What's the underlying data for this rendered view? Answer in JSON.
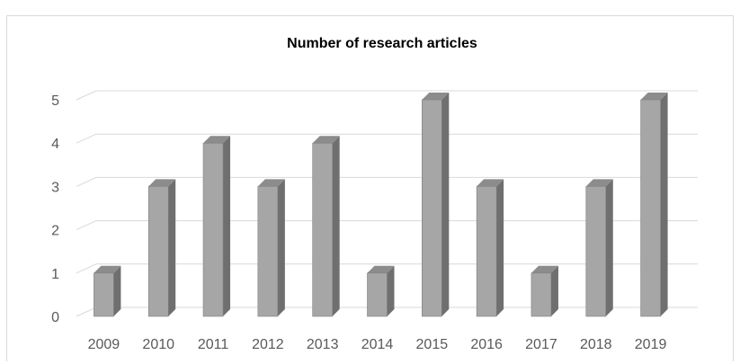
{
  "chart_data": {
    "type": "bar",
    "style": "3d-column",
    "title": "Number of research articles",
    "xlabel": "",
    "ylabel": "",
    "categories": [
      "2009",
      "2010",
      "2011",
      "2012",
      "2013",
      "2014",
      "2015",
      "2016",
      "2017",
      "2018",
      "2019"
    ],
    "values": [
      1,
      3,
      4,
      3,
      4,
      1,
      5,
      3,
      1,
      3,
      5
    ],
    "ylim": [
      0,
      5
    ],
    "yticks": [
      "0",
      "1",
      "2",
      "3",
      "4",
      "5"
    ],
    "grid": true,
    "legend": "none",
    "colors": {
      "bar_front": "#a6a6a6",
      "bar_side": "#6f6f6f",
      "bar_top": "#8c8c8c",
      "bar_edge": "#7f7f7f",
      "gridline": "#d9d9d9",
      "tick_text": "#595959",
      "title_text": "#000000"
    }
  }
}
